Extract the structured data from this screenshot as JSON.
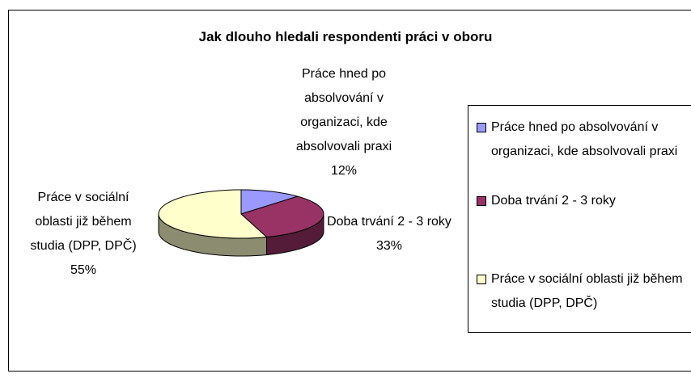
{
  "chart_data": {
    "type": "pie3d",
    "title": "Jak dlouho hledali respondenti práci v oboru",
    "categories": [
      "Práce hned po absolvování v organizaci, kde absolvovali praxi",
      "Doba trvání 2 - 3 roky",
      "Práce v sociální oblasti již během studia (DPP, DPČ)"
    ],
    "values": [
      12,
      33,
      55
    ],
    "value_labels": [
      "12%",
      "33%",
      "55%"
    ],
    "colors": [
      "#9999ff",
      "#993366",
      "#ffffcc"
    ],
    "legend": "right"
  }
}
